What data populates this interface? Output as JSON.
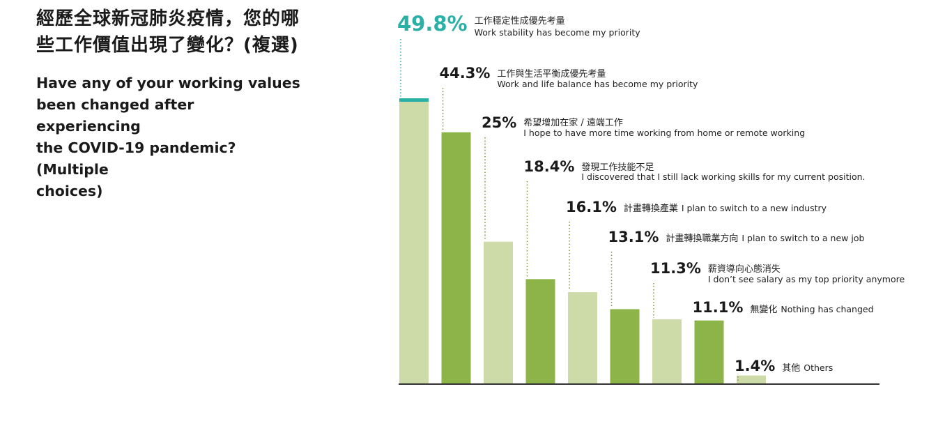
{
  "header": {
    "title_zh_line1": "經歷全球新冠肺炎疫情，您的哪",
    "title_zh_line2": "些工作價值出現了變化？(複選)",
    "title_en_line1": "Have any of your working values",
    "title_en_line2": "been changed after experiencing",
    "title_en_line3": "the COVID-19 pandemic? (Multiple",
    "title_en_line4": "choices)"
  },
  "colors": {
    "light_green": "#cddba8",
    "dark_green": "#8cb449",
    "teal": "#2ab0a4",
    "axis": "#333333"
  },
  "chart_data": {
    "type": "bar",
    "ylim": [
      0,
      50
    ],
    "categories": [
      {
        "value": 49.8,
        "pct": "49.8%",
        "zh": "工作穩定性成優先考量",
        "en": "Work stability has become my priority",
        "highlight": true
      },
      {
        "value": 44.3,
        "pct": "44.3%",
        "zh": "工作與生活平衡成優先考量",
        "en": "Work and life balance has become my priority"
      },
      {
        "value": 25,
        "pct": "25%",
        "zh": "希望增加在家 / 遠端工作",
        "en": "I hope to have more time working from home or remote working"
      },
      {
        "value": 18.4,
        "pct": "18.4%",
        "zh": "發現工作技能不足",
        "en": "I discovered that I still lack working skills for my current position."
      },
      {
        "value": 16.1,
        "pct": "16.1%",
        "zh": "計畫轉換產業",
        "en": "I plan to switch to a new industry"
      },
      {
        "value": 13.1,
        "pct": "13.1%",
        "zh": "計畫轉換職業方向",
        "en": "I plan to switch to a new job"
      },
      {
        "value": 11.3,
        "pct": "11.3%",
        "zh": "薪資導向心態消失",
        "en": "I don’t see salary as my top priority anymore"
      },
      {
        "value": 11.1,
        "pct": "11.1%",
        "zh": "無變化",
        "en": "Nothing has changed"
      },
      {
        "value": 1.4,
        "pct": "1.4%",
        "zh": "其他",
        "en": "Others"
      }
    ]
  }
}
